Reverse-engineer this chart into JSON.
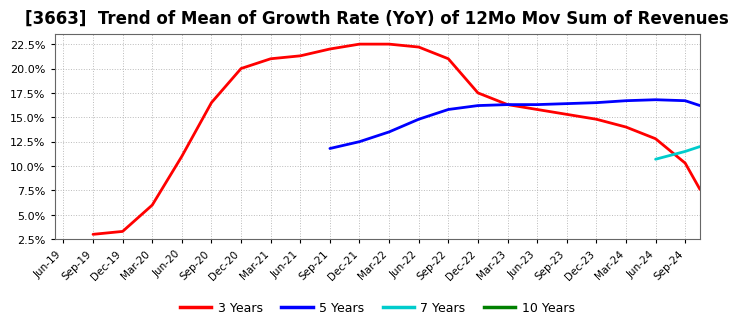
{
  "title": "[3663]  Trend of Mean of Growth Rate (YoY) of 12Mo Mov Sum of Revenues",
  "ylim": [
    0.025,
    0.235
  ],
  "yticks": [
    0.025,
    0.05,
    0.075,
    0.1,
    0.125,
    0.15,
    0.175,
    0.2,
    0.225
  ],
  "series": {
    "3yr": {
      "color": "#FF0000",
      "label": "3 Years",
      "points": [
        [
          1,
          0.03
        ],
        [
          2,
          0.033
        ],
        [
          3,
          0.06
        ],
        [
          4,
          0.11
        ],
        [
          5,
          0.165
        ],
        [
          6,
          0.2
        ],
        [
          7,
          0.21
        ],
        [
          8,
          0.213
        ],
        [
          9,
          0.22
        ],
        [
          10,
          0.225
        ],
        [
          11,
          0.225
        ],
        [
          12,
          0.222
        ],
        [
          13,
          0.21
        ],
        [
          14,
          0.175
        ],
        [
          15,
          0.163
        ],
        [
          16,
          0.158
        ],
        [
          17,
          0.153
        ],
        [
          18,
          0.148
        ],
        [
          19,
          0.14
        ],
        [
          20,
          0.128
        ],
        [
          21,
          0.103
        ],
        [
          21.5,
          0.076
        ]
      ]
    },
    "5yr": {
      "color": "#0000FF",
      "label": "5 Years",
      "points": [
        [
          9,
          0.118
        ],
        [
          10,
          0.125
        ],
        [
          11,
          0.135
        ],
        [
          12,
          0.148
        ],
        [
          13,
          0.158
        ],
        [
          14,
          0.162
        ],
        [
          15,
          0.163
        ],
        [
          16,
          0.163
        ],
        [
          17,
          0.164
        ],
        [
          18,
          0.165
        ],
        [
          19,
          0.167
        ],
        [
          20,
          0.168
        ],
        [
          21,
          0.167
        ],
        [
          21.5,
          0.162
        ]
      ]
    },
    "7yr": {
      "color": "#00CCCC",
      "label": "7 Years",
      "points": [
        [
          20,
          0.107
        ],
        [
          21,
          0.115
        ],
        [
          21.5,
          0.12
        ]
      ]
    },
    "10yr": {
      "color": "#008000",
      "label": "10 Years",
      "points": []
    }
  },
  "xtick_labels": [
    "Jun-19",
    "Sep-19",
    "Dec-19",
    "Mar-20",
    "Jun-20",
    "Sep-20",
    "Dec-20",
    "Mar-21",
    "Jun-21",
    "Sep-21",
    "Dec-21",
    "Mar-22",
    "Jun-22",
    "Sep-22",
    "Dec-22",
    "Mar-23",
    "Jun-23",
    "Sep-23",
    "Dec-23",
    "Mar-24",
    "Jun-24",
    "Sep-24"
  ],
  "grid_color": "#aaaaaa",
  "bg_color": "#ffffff",
  "title_fontsize": 12,
  "legend_items": [
    "3 Years",
    "5 Years",
    "7 Years",
    "10 Years"
  ],
  "legend_colors": [
    "#FF0000",
    "#0000FF",
    "#00CCCC",
    "#008000"
  ]
}
